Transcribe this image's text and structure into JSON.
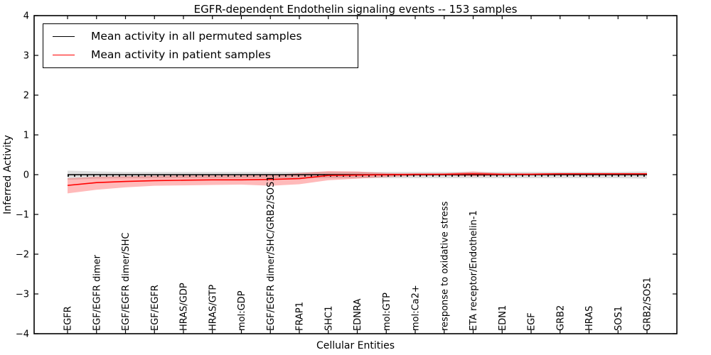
{
  "figure": {
    "title": "EGFR-dependent Endothelin signaling events -- 153 samples",
    "xlabel": "Cellular Entities",
    "ylabel": "Inferred Activity"
  },
  "legend": {
    "position": "upper left",
    "entries": [
      {
        "label": "Mean activity in all permuted samples",
        "color": "#000000"
      },
      {
        "label": "Mean activity in patient samples",
        "color": "#ff0000"
      }
    ]
  },
  "chart_data": {
    "type": "line",
    "title": "EGFR-dependent Endothelin signaling events -- 153 samples",
    "xlabel": "Cellular Entities",
    "ylabel": "Inferred Activity",
    "ylim": [
      -4,
      4
    ],
    "ytick_labels": [
      "4",
      "3",
      "2",
      "1",
      "0",
      "−1",
      "−2",
      "−3",
      "−4"
    ],
    "grid": false,
    "legend_position": "upper left",
    "zero_line_style": "dotted",
    "categories": [
      "EGFR",
      "EGF/EGFR dimer",
      "EGF/EGFR dimer/SHC",
      "EGF/EGFR",
      "HRAS/GDP",
      "HRAS/GTP",
      "mol:GDP",
      "EGF/EGFR dimer/SHC/GRB2/SOS1",
      "FRAP1",
      "SHC1",
      "EDNRA",
      "mol:GTP",
      "mol:Ca2+",
      "response to oxidative stress",
      "ETA receptor/Endothelin-1",
      "EDN1",
      "EGF",
      "GRB2",
      "HRAS",
      "SOS1",
      "GRB2/SOS1"
    ],
    "series": [
      {
        "name": "Mean activity in all permuted samples",
        "color": "#000000",
        "band_color": "rgba(0,0,0,0.13)",
        "values": [
          0,
          0,
          0,
          0,
          0,
          0,
          0,
          0,
          0,
          0,
          0,
          0,
          0,
          0,
          0,
          0,
          0,
          0,
          0,
          0,
          0
        ],
        "band_upper": [
          0.1,
          0.08,
          0.07,
          0.07,
          0.07,
          0.07,
          0.07,
          0.07,
          0.07,
          0.07,
          0.07,
          0.07,
          0.07,
          0.07,
          0.07,
          0.07,
          0.07,
          0.07,
          0.07,
          0.07,
          0.08
        ],
        "band_lower": [
          -0.13,
          -0.1,
          -0.09,
          -0.09,
          -0.09,
          -0.09,
          -0.09,
          -0.09,
          -0.09,
          -0.09,
          -0.09,
          -0.09,
          -0.09,
          -0.09,
          -0.09,
          -0.09,
          -0.09,
          -0.09,
          -0.09,
          -0.09,
          -0.1
        ]
      },
      {
        "name": "Mean activity in patient samples",
        "color": "#ff0000",
        "band_color": "rgba(255,0,0,0.27)",
        "values": [
          -0.27,
          -0.2,
          -0.17,
          -0.15,
          -0.14,
          -0.13,
          -0.13,
          -0.12,
          -0.1,
          -0.02,
          -0.01,
          0.0,
          0.01,
          0.01,
          0.02,
          0.01,
          0.01,
          0.02,
          0.02,
          0.02,
          0.02
        ],
        "band_upper": [
          -0.09,
          -0.05,
          -0.04,
          -0.03,
          -0.02,
          -0.02,
          -0.02,
          -0.01,
          0.04,
          0.09,
          0.08,
          0.04,
          0.02,
          0.03,
          0.08,
          0.03,
          0.03,
          0.04,
          0.04,
          0.04,
          0.04
        ],
        "band_lower": [
          -0.47,
          -0.38,
          -0.32,
          -0.28,
          -0.27,
          -0.26,
          -0.25,
          -0.28,
          -0.24,
          -0.14,
          -0.1,
          -0.06,
          -0.03,
          -0.02,
          -0.04,
          -0.02,
          -0.01,
          0.0,
          0.0,
          0.0,
          0.0
        ]
      }
    ]
  }
}
